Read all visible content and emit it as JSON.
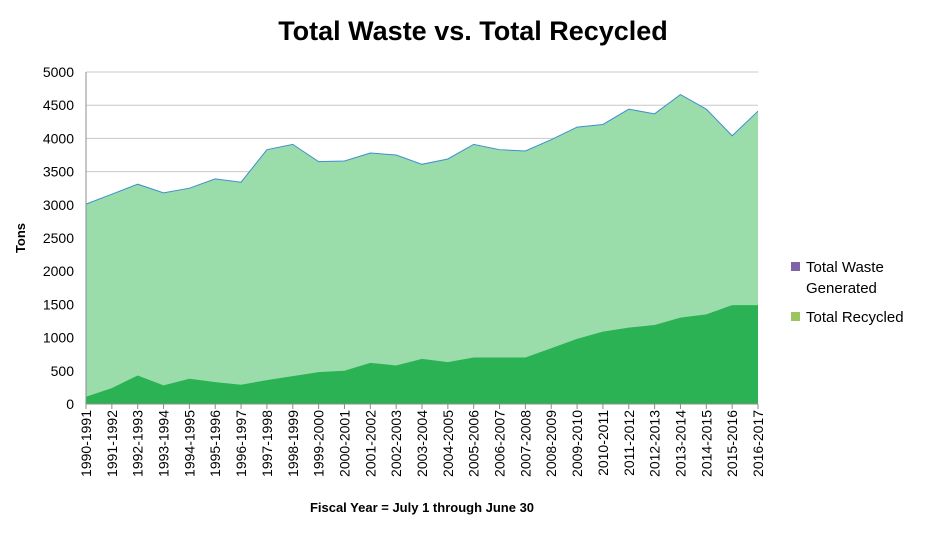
{
  "chart_data": {
    "type": "area",
    "title": "Total Waste vs. Total Recycled",
    "xlabel": "Fiscal Year = July 1 through June 30",
    "ylabel": "Tons",
    "ylim": [
      0,
      5000
    ],
    "yticks": [
      "0",
      "500",
      "1000",
      "1500",
      "2000",
      "2500",
      "3000",
      "3500",
      "4000",
      "4500",
      "5000"
    ],
    "grid": true,
    "legend_position": "right",
    "categories": [
      "1990-1991",
      "1991-1992",
      "1992-1993",
      "1993-1994",
      "1994-1995",
      "1995-1996",
      "1996-1997",
      "1997-1998",
      "1998-1999",
      "1999-2000",
      "2000-2001",
      "2001-2002",
      "2002-2003",
      "2003-2004",
      "2004-2005",
      "2005-2006",
      "2006-2007",
      "2007-2008",
      "2008-2009",
      "2009-2010",
      "2010-2011",
      "2011-2012",
      "2012-2013",
      "2013-2014",
      "2014-2015",
      "2015-2016",
      "2016-2017"
    ],
    "series": [
      {
        "name": "Total Waste Generated",
        "color": "#7f63a8",
        "fill": "#9adcaa",
        "values": [
          3010,
          3160,
          3310,
          3180,
          3250,
          3390,
          3340,
          3830,
          3910,
          3650,
          3660,
          3780,
          3750,
          3610,
          3690,
          3910,
          3830,
          3810,
          3980,
          4170,
          4210,
          4440,
          4370,
          4660,
          4440,
          4040,
          4410
        ]
      },
      {
        "name": "Total Recycled",
        "color": "#9bc65f",
        "fill": "#2bb254",
        "values": [
          110,
          240,
          430,
          280,
          380,
          330,
          290,
          360,
          420,
          480,
          500,
          620,
          580,
          680,
          630,
          700,
          700,
          700,
          840,
          980,
          1090,
          1150,
          1190,
          1300,
          1350,
          1490,
          1490
        ]
      }
    ]
  }
}
